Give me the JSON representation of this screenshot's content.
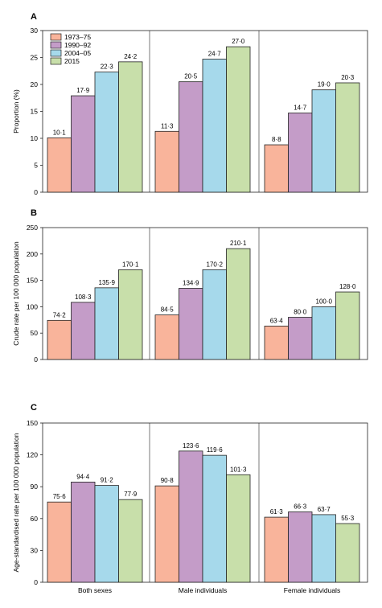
{
  "colors": {
    "1973-75": "#f9b49b",
    "1990-92": "#c49cc8",
    "2004-05": "#a6d9eb",
    "2015": "#c8dfaa",
    "frame": "#222222",
    "gridline": "#cccccc"
  },
  "chart_data": [
    {
      "type": "bar",
      "panel_label": "A",
      "ylabel": "Proportion (%)",
      "ylim": [
        0,
        30
      ],
      "yticks": [
        "0",
        "5",
        "10",
        "15",
        "20",
        "25",
        "30"
      ],
      "categories": [
        "",
        "",
        ""
      ],
      "legend_position": "top-left",
      "series": [
        {
          "name": "1973–75",
          "values": [
            10.1,
            11.3,
            8.8
          ],
          "labels": [
            "10·1",
            "11·3",
            "8·8"
          ]
        },
        {
          "name": "1990–92",
          "values": [
            17.9,
            20.5,
            14.7
          ],
          "labels": [
            "17·9",
            "20·5",
            "14·7"
          ]
        },
        {
          "name": "2004–05",
          "values": [
            22.3,
            24.7,
            19.0
          ],
          "labels": [
            "22·3",
            "24·7",
            "19·0"
          ]
        },
        {
          "name": "2015",
          "values": [
            24.2,
            27.0,
            20.3
          ],
          "labels": [
            "24·2",
            "27·0",
            "20·3"
          ]
        }
      ]
    },
    {
      "type": "bar",
      "panel_label": "B",
      "ylabel": "Crude rate per 100 000 population",
      "ylim": [
        0,
        250
      ],
      "yticks": [
        "0",
        "50",
        "100",
        "150",
        "200",
        "250"
      ],
      "categories": [
        "",
        "",
        ""
      ],
      "series": [
        {
          "name": "1973–75",
          "values": [
            74.2,
            84.5,
            63.4
          ],
          "labels": [
            "74·2",
            "84·5",
            "63·4"
          ]
        },
        {
          "name": "1990–92",
          "values": [
            108.3,
            134.9,
            80.0
          ],
          "labels": [
            "108·3",
            "134·9",
            "80·0"
          ]
        },
        {
          "name": "2004–05",
          "values": [
            135.9,
            170.2,
            100.0
          ],
          "labels": [
            "135·9",
            "170·2",
            "100·0"
          ]
        },
        {
          "name": "2015",
          "values": [
            170.1,
            210.1,
            128.0
          ],
          "labels": [
            "170·1",
            "210·1",
            "128·0"
          ]
        }
      ]
    },
    {
      "type": "bar",
      "panel_label": "C",
      "ylabel": "Age-standardised rate per 100 000 population",
      "ylim": [
        0,
        150
      ],
      "yticks": [
        "0",
        "30",
        "60",
        "90",
        "120",
        "150"
      ],
      "categories": [
        "Both sexes",
        "Male individuals",
        "Female individuals"
      ],
      "series": [
        {
          "name": "1973–75",
          "values": [
            75.6,
            90.8,
            61.3
          ],
          "labels": [
            "75·6",
            "90·8",
            "61·3"
          ]
        },
        {
          "name": "1990–92",
          "values": [
            94.4,
            123.6,
            66.3
          ],
          "labels": [
            "94·4",
            "123·6",
            "66·3"
          ]
        },
        {
          "name": "2004–05",
          "values": [
            91.2,
            119.6,
            63.7
          ],
          "labels": [
            "91·2",
            "119·6",
            "63·7"
          ]
        },
        {
          "name": "2015",
          "values": [
            77.9,
            101.3,
            55.3
          ],
          "labels": [
            "77·9",
            "101·3",
            "55·3"
          ]
        }
      ]
    }
  ]
}
